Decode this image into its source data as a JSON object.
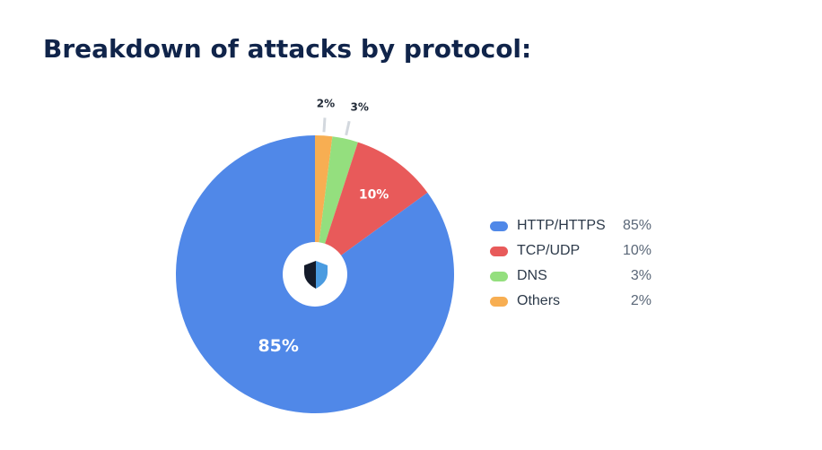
{
  "chart_data": {
    "type": "pie",
    "title": "Breakdown of attacks by protocol:",
    "categories": [
      "HTTP/HTTPS",
      "TCP/UDP",
      "DNS",
      "Others"
    ],
    "values": [
      85,
      10,
      3,
      2
    ],
    "value_labels": [
      "85%",
      "10%",
      "3%",
      "2%"
    ],
    "colors": [
      "#5088e8",
      "#e85a5a",
      "#94df7e",
      "#f7ae52"
    ],
    "legend_placement": "right",
    "center_icon": "shield-icon"
  }
}
